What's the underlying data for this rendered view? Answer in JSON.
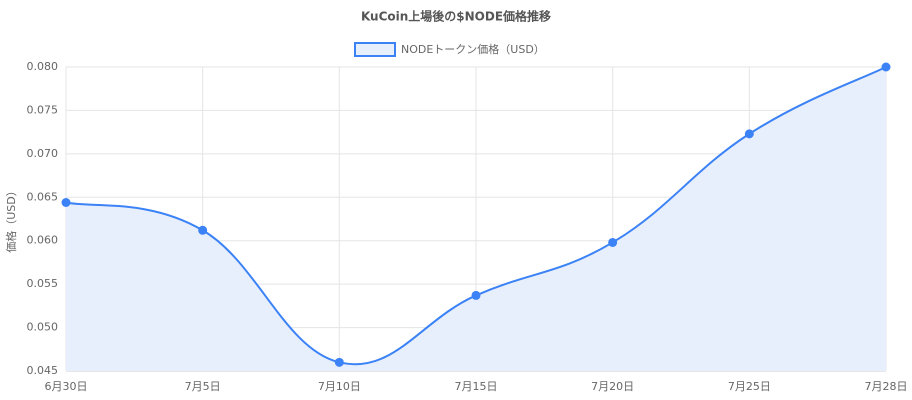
{
  "chart_data": {
    "type": "line",
    "title": "KuCoin上場後の$NODE価格推移",
    "categories": [
      "6月30日",
      "7月5日",
      "7月10日",
      "7月15日",
      "7月20日",
      "7月25日",
      "7月28日"
    ],
    "series": [
      {
        "name": "NODEトークン価格（USD）",
        "color": "#3b82f6",
        "fill": "#e8effc",
        "values": [
          0.0644,
          0.0612,
          0.046,
          0.0537,
          0.0598,
          0.0723,
          0.08
        ]
      }
    ],
    "y_label": "価格（USD）",
    "ylim": [
      0.045,
      0.08
    ],
    "yticks": [
      0.045,
      {
        "value": 0.05,
        "label": "0.050"
      },
      0.055,
      {
        "value": 0.06,
        "label": "0.060"
      },
      0.065,
      {
        "value": 0.07,
        "label": "0.070"
      },
      0.075,
      {
        "value": 0.08,
        "label": "0.080"
      }
    ],
    "grid": true
  }
}
